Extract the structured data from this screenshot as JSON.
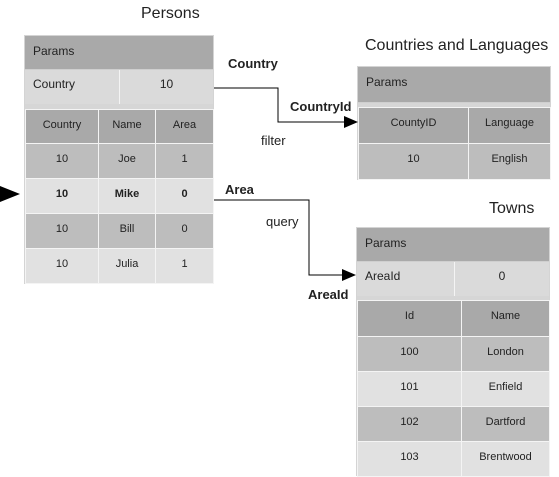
{
  "persons": {
    "title": "Persons",
    "params_label": "Params",
    "param_key": "Country",
    "param_value": "10",
    "columns": [
      "Country",
      "Name",
      "Area"
    ],
    "rows": [
      [
        "10",
        "Joe",
        "1"
      ],
      [
        "10",
        "Mike",
        "0"
      ],
      [
        "10",
        "Bill",
        "0"
      ],
      [
        "10",
        "Julia",
        "1"
      ]
    ]
  },
  "countries": {
    "title": "Countries and Languages",
    "params_label": "Params",
    "columns": [
      "CountyID",
      "Language"
    ],
    "rows": [
      [
        "10",
        "English"
      ]
    ]
  },
  "towns": {
    "title": "Towns",
    "params_label": "Params",
    "param_key": "AreaId",
    "param_value": "0",
    "columns": [
      "Id",
      "Name"
    ],
    "rows": [
      [
        "100",
        "London"
      ],
      [
        "101",
        "Enfield"
      ],
      [
        "102",
        "Dartford"
      ],
      [
        "103",
        "Brentwood"
      ]
    ]
  },
  "links": {
    "country_source": "Country",
    "country_target": "CountryId",
    "country_kind": "filter",
    "area_source": "Area",
    "area_target": "AreaId",
    "area_kind": "query"
  }
}
